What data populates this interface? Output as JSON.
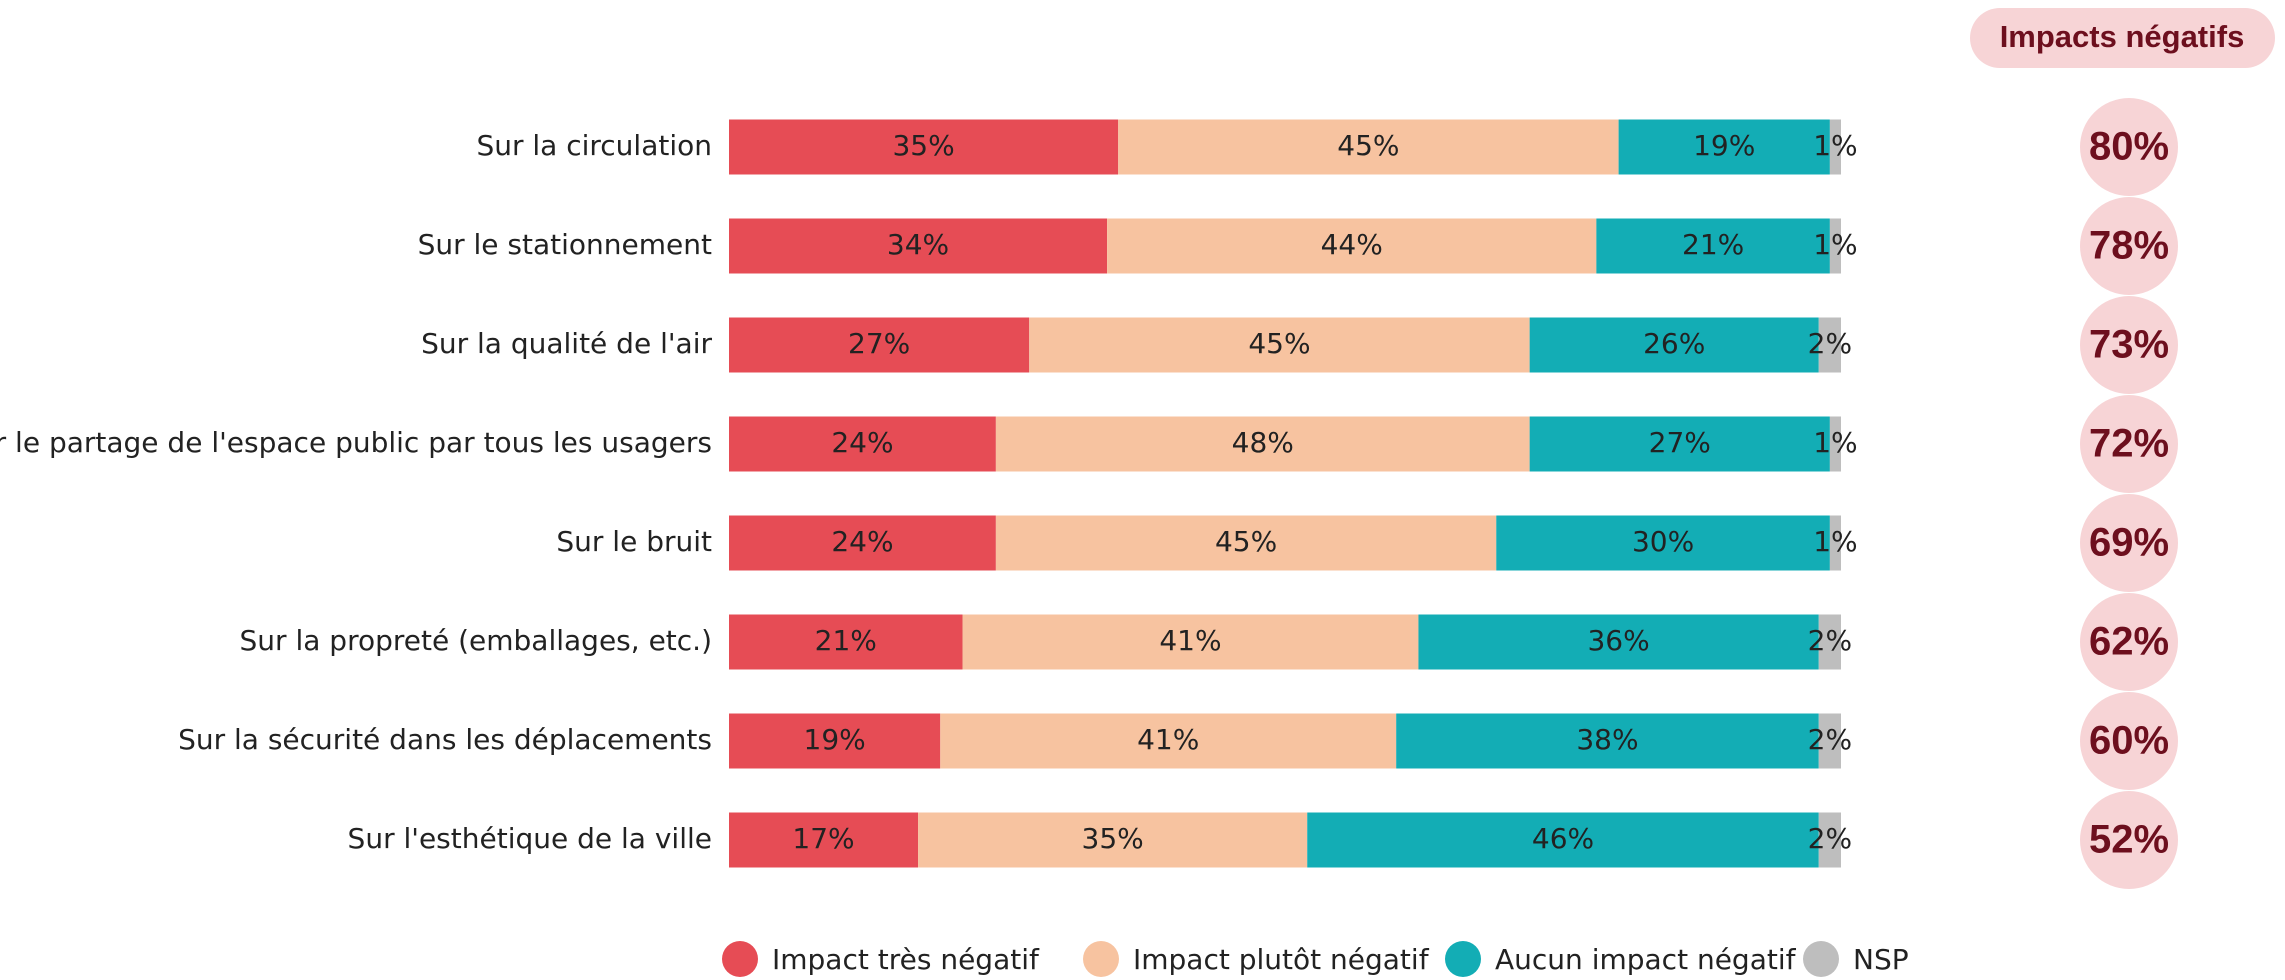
{
  "chart_data": {
    "type": "stacked_bar_horizontal",
    "categories": [
      "Sur la circulation",
      "Sur le stationnement",
      "Sur la qualité de l'air",
      "Sur le partage de l'espace public par tous les usagers",
      "Sur le bruit",
      "Sur la propreté (emballages, etc.)",
      "Sur la sécurité dans les déplacements",
      "Sur l'esthétique de la ville"
    ],
    "xlim": [
      0,
      100
    ],
    "series": [
      {
        "name": "Impact très négatif",
        "color": "#e64c55",
        "values": [
          35,
          34,
          27,
          24,
          24,
          21,
          19,
          17
        ],
        "value_labels": [
          "35%",
          "34%",
          "27%",
          "24%",
          "24%",
          "21%",
          "19%",
          "17%"
        ]
      },
      {
        "name": "Impact plutôt négatif",
        "color": "#f7c3a0",
        "values": [
          45,
          44,
          45,
          48,
          45,
          41,
          41,
          35
        ],
        "value_labels": [
          "45%",
          "44%",
          "45%",
          "48%",
          "45%",
          "41%",
          "41%",
          "35%"
        ]
      },
      {
        "name": "Aucun impact négatif",
        "color": "#13adb5",
        "values": [
          19,
          21,
          26,
          27,
          30,
          36,
          38,
          46
        ],
        "value_labels": [
          "19%",
          "21%",
          "26%",
          "27%",
          "30%",
          "36%",
          "38%",
          "46%"
        ]
      },
      {
        "name": "NSP",
        "color": "#bebebe",
        "values": [
          1,
          1,
          2,
          1,
          1,
          2,
          2,
          2
        ],
        "value_labels": [
          "1%",
          "1%",
          "2%",
          "1%",
          "1%",
          "2%",
          "2%",
          "2%"
        ]
      }
    ],
    "legend": "bottom",
    "negative_impacts": {
      "title": "Impacts négatifs",
      "color": "#f7d4d6",
      "values": [
        80,
        78,
        73,
        72,
        69,
        62,
        60,
        52
      ],
      "value_labels": [
        "80%",
        "78%",
        "73%",
        "72%",
        "69%",
        "62%",
        "60%",
        "52%"
      ]
    }
  }
}
